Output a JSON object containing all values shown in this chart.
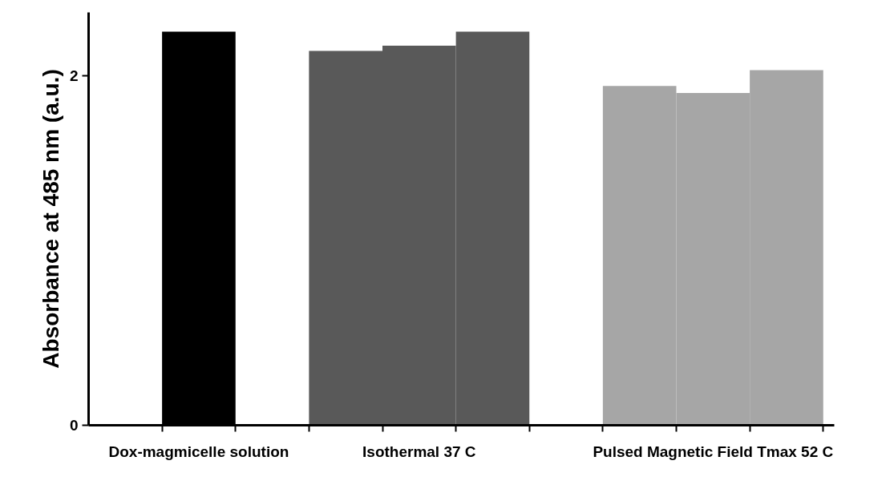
{
  "chart_data": {
    "type": "bar",
    "ylabel": "Absorbance at 485 nm (a.u.)",
    "categories": [
      "Dox-magmicelle solution",
      null,
      null,
      "Isothermal 37 C",
      null,
      null,
      null,
      "Pulsed Magnetic Field Tmax 52 C",
      null
    ],
    "values": [
      2.25,
      null,
      2.14,
      2.17,
      2.25,
      null,
      1.94,
      1.9,
      2.03
    ],
    "colors": [
      "#000000",
      "#ffffff",
      "#595959",
      "#595959",
      "#595959",
      "#ffffff",
      "#a6a6a6",
      "#a6a6a6",
      "#a6a6a6"
    ],
    "ylim": [
      0,
      2.36
    ],
    "yticks": [
      0,
      2
    ],
    "grid": false
  }
}
